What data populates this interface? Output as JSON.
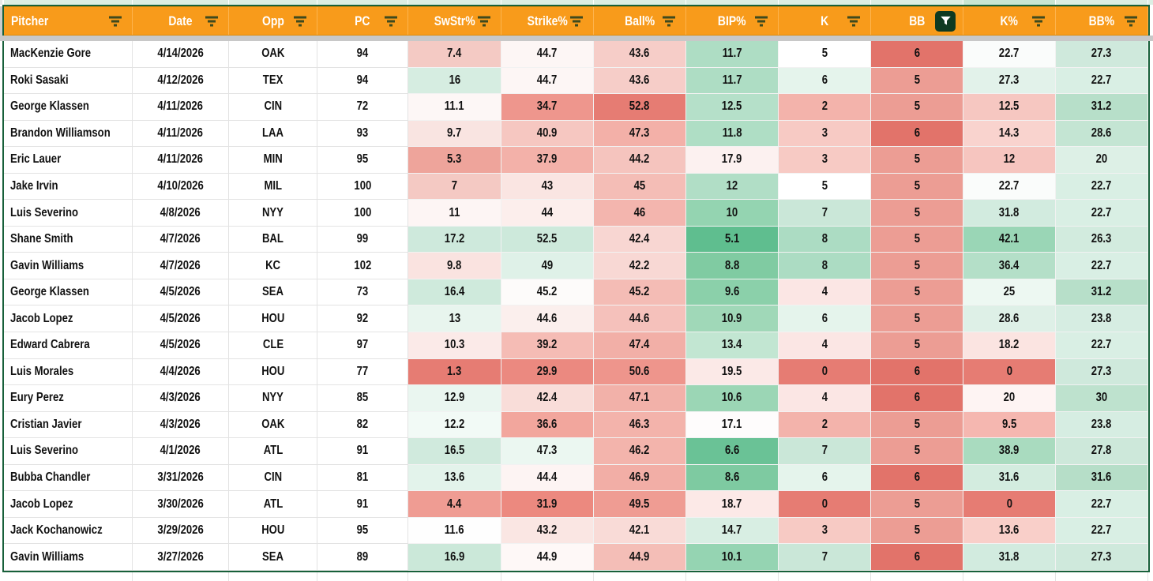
{
  "theme": {
    "header_bg": "#F89B1B",
    "header_border": "#DD8A0B",
    "header_separator": "#FDB44E",
    "header_text": "#FFFFFF",
    "table_outline_green": "#17603A",
    "strip_green": "#DCEEE3",
    "strip_green_dark": "#C8E5D3",
    "freeze_bar_grey": "#C8C8C8",
    "grid_line": "#E3E3E3",
    "grid_line_light": "#F2F2F2",
    "cell_text": "#111111",
    "filter_icon_color": "#3E4A1E",
    "filter_active_bg": "#0E3A21",
    "filter_active_glyph": "#FFFFFF",
    "heat_red_full": "#E67C73",
    "heat_green_full": "#57BB8A"
  },
  "table": {
    "columns": [
      {
        "key": "pitcher",
        "label": "Pitcher",
        "align": "left",
        "filter": "default"
      },
      {
        "key": "date",
        "label": "Date",
        "align": "center",
        "filter": "default"
      },
      {
        "key": "opp",
        "label": "Opp",
        "align": "center",
        "filter": "default"
      },
      {
        "key": "pc",
        "label": "PC",
        "align": "center",
        "filter": "default"
      },
      {
        "key": "swstr",
        "label": "SwStr%",
        "align": "center",
        "filter": "default"
      },
      {
        "key": "strike",
        "label": "Strike%",
        "align": "center",
        "filter": "default"
      },
      {
        "key": "ball",
        "label": "Ball%",
        "align": "center",
        "filter": "default"
      },
      {
        "key": "bip",
        "label": "BIP%",
        "align": "center",
        "filter": "default"
      },
      {
        "key": "k",
        "label": "K",
        "align": "center",
        "filter": "default"
      },
      {
        "key": "bb",
        "label": "BB",
        "align": "center",
        "filter": "active"
      },
      {
        "key": "kpct",
        "label": "K%",
        "align": "center",
        "filter": "default"
      },
      {
        "key": "bbpct",
        "label": "BB%",
        "align": "center",
        "filter": "default"
      }
    ],
    "rows": [
      {
        "cells": [
          "MacKenzie Gore",
          "4/14/2026",
          "OAK",
          "94",
          "7.4",
          "44.7",
          "43.6",
          "11.7",
          "5",
          "6",
          "22.7",
          "27.3"
        ],
        "bg": [
          "",
          "",
          "",
          "",
          "#F4CAC4",
          "#FDF6F5",
          "#F6CDC8",
          "#AEDDC4",
          "#FFFFFF",
          "#E2736A",
          "#FAFCFB",
          "#CFE9DC"
        ]
      },
      {
        "cells": [
          "Roki Sasaki",
          "4/12/2026",
          "TEX",
          "94",
          "16",
          "44.7",
          "43.6",
          "11.7",
          "6",
          "5",
          "27.3",
          "22.7"
        ],
        "bg": [
          "",
          "",
          "",
          "",
          "#D6EDE1",
          "#FDF6F5",
          "#F6CDC8",
          "#AEDDC4",
          "#E5F4EC",
          "#EC9D94",
          "#E2F2EA",
          "#D9EFE4"
        ]
      },
      {
        "cells": [
          "George Klassen",
          "4/11/2026",
          "CIN",
          "72",
          "11.1",
          "34.7",
          "52.8",
          "12.5",
          "2",
          "5",
          "12.5",
          "31.2"
        ],
        "bg": [
          "",
          "",
          "",
          "",
          "#FDF7F6",
          "#EE968D",
          "#E67C73",
          "#B5E0C9",
          "#F3B3AB",
          "#EC9D94",
          "#F6C7C1",
          "#B7DFC9"
        ]
      },
      {
        "cells": [
          "Brandon Williamson",
          "4/11/2026",
          "LAA",
          "93",
          "9.7",
          "40.9",
          "47.3",
          "11.8",
          "3",
          "6",
          "14.3",
          "28.6"
        ],
        "bg": [
          "",
          "",
          "",
          "",
          "#F9E4E1",
          "#F6C7C1",
          "#F3B0A8",
          "#AFDEC5",
          "#F7CAC4",
          "#E2736A",
          "#F9D3CE",
          "#C4E5D3"
        ]
      },
      {
        "cells": [
          "Eric Lauer",
          "4/11/2026",
          "MIN",
          "95",
          "5.3",
          "37.9",
          "44.2",
          "17.9",
          "3",
          "5",
          "12",
          "20"
        ],
        "bg": [
          "",
          "",
          "",
          "",
          "#EEA49B",
          "#F3B1A9",
          "#F5C4BE",
          "#FCF1F0",
          "#F7CAC4",
          "#EC9D94",
          "#F6C5BF",
          "#DDF0E6"
        ]
      },
      {
        "cells": [
          "Jake Irvin",
          "4/10/2026",
          "MIL",
          "100",
          "7",
          "43",
          "45",
          "12",
          "5",
          "5",
          "22.7",
          "22.7"
        ],
        "bg": [
          "",
          "",
          "",
          "",
          "#F4C9C3",
          "#FAE5E2",
          "#F4BDB6",
          "#B1DEC6",
          "#FFFFFF",
          "#EC9D94",
          "#FAFCFB",
          "#D9EFE4"
        ]
      },
      {
        "cells": [
          "Luis Severino",
          "4/8/2026",
          "NYY",
          "100",
          "11",
          "44",
          "46",
          "10",
          "7",
          "5",
          "31.8",
          "22.7"
        ],
        "bg": [
          "",
          "",
          "",
          "",
          "#FDF5F4",
          "#FCEEEC",
          "#F3B5AE",
          "#94D4B1",
          "#CAE7D8",
          "#EC9D94",
          "#D2EBDF",
          "#D9EFE4"
        ]
      },
      {
        "cells": [
          "Shane Smith",
          "4/7/2026",
          "BAL",
          "99",
          "17.2",
          "52.5",
          "42.4",
          "5.1",
          "8",
          "5",
          "42.1",
          "26.3"
        ],
        "bg": [
          "",
          "",
          "",
          "",
          "#CEE9DC",
          "#CDE9DB",
          "#F8D6D2",
          "#5FBE8F",
          "#ACDCC3",
          "#EC9D94",
          "#9AD6B6",
          "#D2EBDE"
        ]
      },
      {
        "cells": [
          "Gavin Williams",
          "4/7/2026",
          "KC",
          "102",
          "9.8",
          "49",
          "42.2",
          "8.8",
          "8",
          "5",
          "36.4",
          "22.7"
        ],
        "bg": [
          "",
          "",
          "",
          "",
          "#FAE3E0",
          "#DFF1E8",
          "#F8D8D4",
          "#80CBA2",
          "#ACDCC3",
          "#EC9D94",
          "#B4DFC8",
          "#D9EFE4"
        ]
      },
      {
        "cells": [
          "George Klassen",
          "4/5/2026",
          "SEA",
          "73",
          "16.4",
          "45.2",
          "45.2",
          "9.6",
          "4",
          "5",
          "25",
          "31.2"
        ],
        "bg": [
          "",
          "",
          "",
          "",
          "#CFEADC",
          "#FDFBFA",
          "#F4BCB5",
          "#8BD0AA",
          "#FBE6E4",
          "#EC9D94",
          "#EDF8F2",
          "#B7DFC9"
        ]
      },
      {
        "cells": [
          "Jacob Lopez",
          "4/5/2026",
          "HOU",
          "92",
          "13",
          "44.6",
          "44.6",
          "10.9",
          "6",
          "5",
          "28.6",
          "23.8"
        ],
        "bg": [
          "",
          "",
          "",
          "",
          "#E8F5EE",
          "#FBEFED",
          "#F5C1BB",
          "#A0D8B8",
          "#E5F4EC",
          "#EC9D94",
          "#DEF0E7",
          "#D6EDE2"
        ]
      },
      {
        "cells": [
          "Edward Cabrera",
          "4/5/2026",
          "CLE",
          "97",
          "10.3",
          "39.2",
          "47.4",
          "13.4",
          "4",
          "5",
          "18.2",
          "22.7"
        ],
        "bg": [
          "",
          "",
          "",
          "",
          "#FBEAE8",
          "#F5BCB5",
          "#F2AFA7",
          "#C2E6D2",
          "#FBE6E4",
          "#EC9D94",
          "#FBE4E1",
          "#D9EFE4"
        ]
      },
      {
        "cells": [
          "Luis Morales",
          "4/4/2026",
          "HOU",
          "77",
          "1.3",
          "29.9",
          "50.6",
          "19.5",
          "0",
          "6",
          "0",
          "27.3"
        ],
        "bg": [
          "",
          "",
          "",
          "",
          "#E67C73",
          "#EB8980",
          "#EE958C",
          "#FBE9E7",
          "#E67C73",
          "#E2736A",
          "#E67C73",
          "#CFE9DC"
        ]
      },
      {
        "cells": [
          "Eury Perez",
          "4/3/2026",
          "NYY",
          "85",
          "12.9",
          "42.4",
          "47.1",
          "10.6",
          "4",
          "6",
          "20",
          "30"
        ],
        "bg": [
          "",
          "",
          "",
          "",
          "#EAF6F0",
          "#F9DDD9",
          "#F2B1A9",
          "#9BD6B5",
          "#FBE6E4",
          "#E2736A",
          "#FEF4F3",
          "#BEE2CE"
        ]
      },
      {
        "cells": [
          "Cristian Javier",
          "4/3/2026",
          "OAK",
          "82",
          "12.2",
          "36.6",
          "46.3",
          "17.1",
          "2",
          "5",
          "9.5",
          "23.8"
        ],
        "bg": [
          "",
          "",
          "",
          "",
          "#F2FAF6",
          "#F2A69D",
          "#F3B3AB",
          "#FEFCFC",
          "#F3B3AB",
          "#EC9D94",
          "#F5B7B0",
          "#D6EDE2"
        ]
      },
      {
        "cells": [
          "Luis Severino",
          "4/1/2026",
          "ATL",
          "91",
          "16.5",
          "47.3",
          "46.2",
          "6.6",
          "7",
          "5",
          "38.9",
          "27.8"
        ],
        "bg": [
          "",
          "",
          "",
          "",
          "#D0EADD",
          "#EBF7F1",
          "#F3B4AC",
          "#6AC296",
          "#CAE7D8",
          "#EC9D94",
          "#A9DBBF",
          "#CDE8DA"
        ]
      },
      {
        "cells": [
          "Bubba Chandler",
          "3/31/2026",
          "CIN",
          "81",
          "13.6",
          "44.4",
          "46.9",
          "8.6",
          "6",
          "6",
          "31.6",
          "31.6"
        ],
        "bg": [
          "",
          "",
          "",
          "",
          "#E3F3EB",
          "#FDF4F3",
          "#F2AEA6",
          "#7ECAA1",
          "#E5F4EC",
          "#E2736A",
          "#D3ECDF",
          "#B6DEC8"
        ]
      },
      {
        "cells": [
          "Jacob Lopez",
          "3/30/2026",
          "ATL",
          "91",
          "4.4",
          "31.9",
          "49.5",
          "18.7",
          "0",
          "5",
          "0",
          "22.7"
        ],
        "bg": [
          "",
          "",
          "",
          "",
          "#EF9C93",
          "#EC897F",
          "#EF9C93",
          "#FCE9E7",
          "#E67C73",
          "#EC9D94",
          "#E67C73",
          "#D9EFE4"
        ]
      },
      {
        "cells": [
          "Jack Kochanowicz",
          "3/29/2026",
          "HOU",
          "95",
          "11.6",
          "43.2",
          "42.1",
          "14.7",
          "3",
          "5",
          "13.6",
          "22.7"
        ],
        "bg": [
          "",
          "",
          "",
          "",
          "#FEFEFE",
          "#FAE6E3",
          "#F9DBD7",
          "#D8EEE3",
          "#F7CAC4",
          "#EC9D94",
          "#F9CFC9",
          "#D9EFE4"
        ]
      },
      {
        "cells": [
          "Gavin Williams",
          "3/27/2026",
          "SEA",
          "89",
          "16.9",
          "44.9",
          "44.9",
          "10.1",
          "7",
          "6",
          "31.8",
          "27.3"
        ],
        "bg": [
          "",
          "",
          "",
          "",
          "#CBE8D9",
          "#FEF8F7",
          "#F4BEB7",
          "#95D4B2",
          "#CAE7D8",
          "#E2736A",
          "#D2EBDF",
          "#CFE9DC"
        ]
      }
    ]
  }
}
